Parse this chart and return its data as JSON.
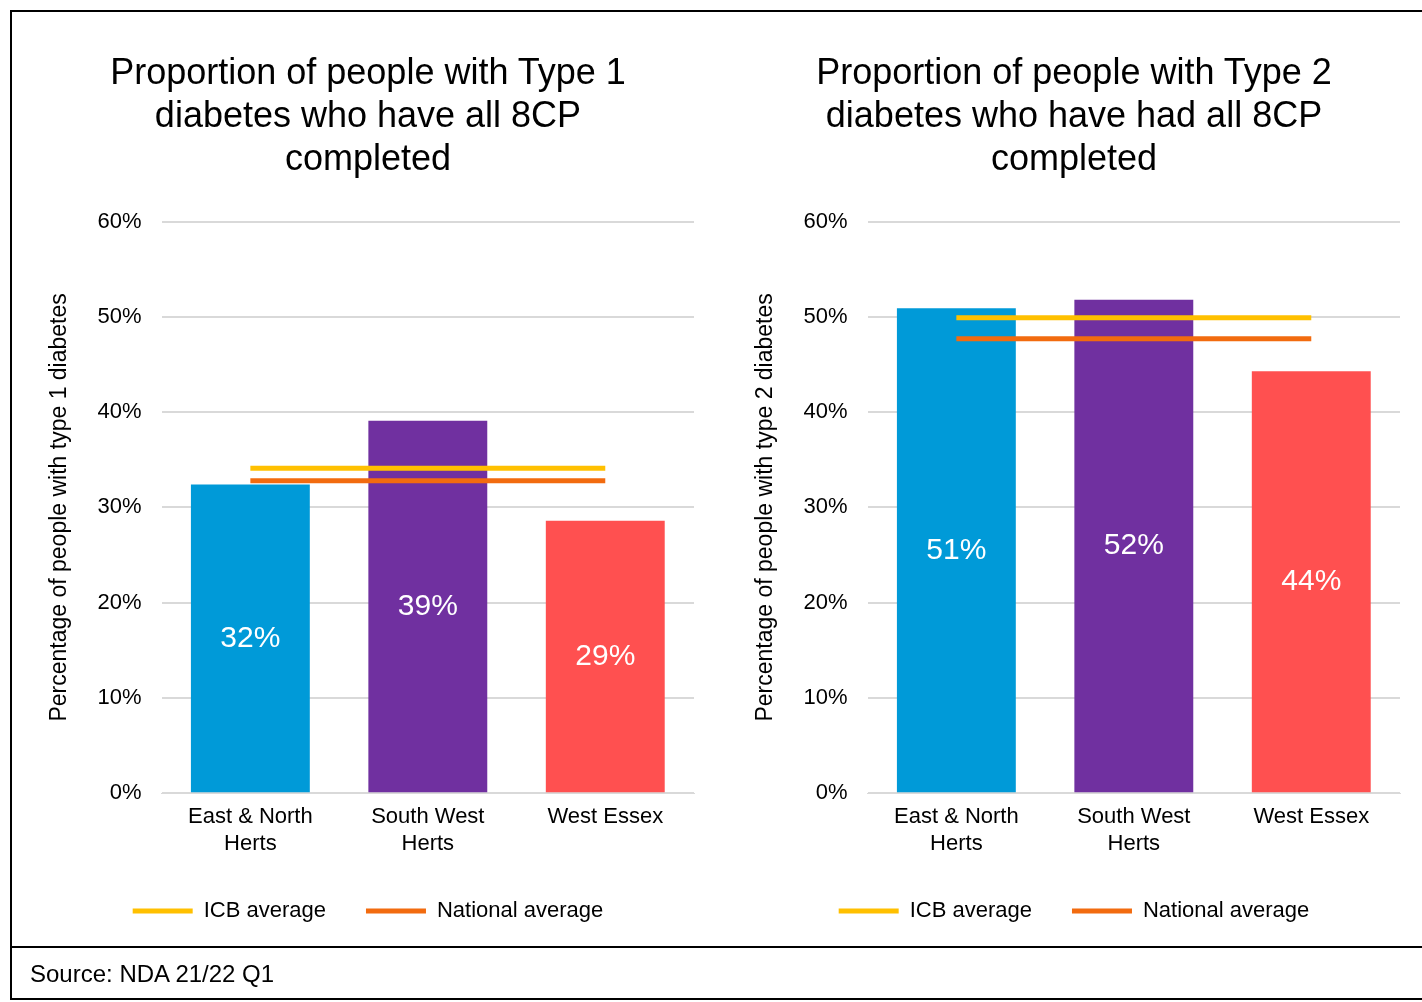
{
  "chart_data": [
    {
      "type": "bar",
      "title": "Proportion of people with Type 1 diabetes who have all 8CP completed",
      "ylabel": "Percentage of people with type 1 diabetes",
      "categories": [
        "East & North Herts",
        "South West Herts",
        "West Essex"
      ],
      "series": [
        {
          "values": [
            32.4,
            39.1,
            28.6
          ],
          "colors": [
            "#009ad8",
            "#7030a0",
            "#ff5050"
          ],
          "value_labels": [
            "32%",
            "39%",
            "29%"
          ]
        },
        {
          "type": "line",
          "name": "ICB average",
          "color": "#ffc000",
          "values": [
            34.1,
            34.1,
            34.1
          ]
        },
        {
          "type": "line",
          "name": "National average",
          "color": "#f26b0f",
          "values": [
            32.8,
            32.8,
            32.8
          ]
        }
      ],
      "ylim": [
        0,
        60
      ],
      "yticks": [
        {
          "value": 0,
          "label": "0%"
        },
        {
          "value": 10,
          "label": "10%"
        },
        {
          "value": 20,
          "label": "20%"
        },
        {
          "value": 30,
          "label": "30%"
        },
        {
          "value": 40,
          "label": "40%"
        },
        {
          "value": 50,
          "label": "50%"
        },
        {
          "value": 60,
          "label": "60%"
        }
      ],
      "grid": "y",
      "legend": "bottom",
      "marker": "none"
    },
    {
      "type": "bar",
      "title": "Proportion of people with Type 2 diabetes who have had all 8CP completed",
      "ylabel": "Percentage of people with type 2 diabetes",
      "categories": [
        "East & North Herts",
        "South West Herts",
        "West Essex"
      ],
      "series": [
        {
          "values": [
            50.9,
            51.8,
            44.3
          ],
          "colors": [
            "#009ad8",
            "#7030a0",
            "#ff5050"
          ],
          "value_labels": [
            "51%",
            "52%",
            "44%"
          ]
        },
        {
          "type": "line",
          "name": "ICB average",
          "color": "#ffc000",
          "values": [
            49.9,
            49.9,
            49.9
          ]
        },
        {
          "type": "line",
          "name": "National average",
          "color": "#f26b0f",
          "values": [
            47.7,
            47.7,
            47.7
          ]
        }
      ],
      "ylim": [
        0,
        60
      ],
      "yticks": [
        {
          "value": 0,
          "label": "0%"
        },
        {
          "value": 10,
          "label": "10%"
        },
        {
          "value": 20,
          "label": "20%"
        },
        {
          "value": 30,
          "label": "30%"
        },
        {
          "value": 40,
          "label": "40%"
        },
        {
          "value": 50,
          "label": "50%"
        },
        {
          "value": 60,
          "label": "60%"
        }
      ],
      "grid": "y",
      "legend": "bottom",
      "marker": "none",
      "annotations": [
        "Source: NDA 21/22 Q1"
      ]
    }
  ]
}
